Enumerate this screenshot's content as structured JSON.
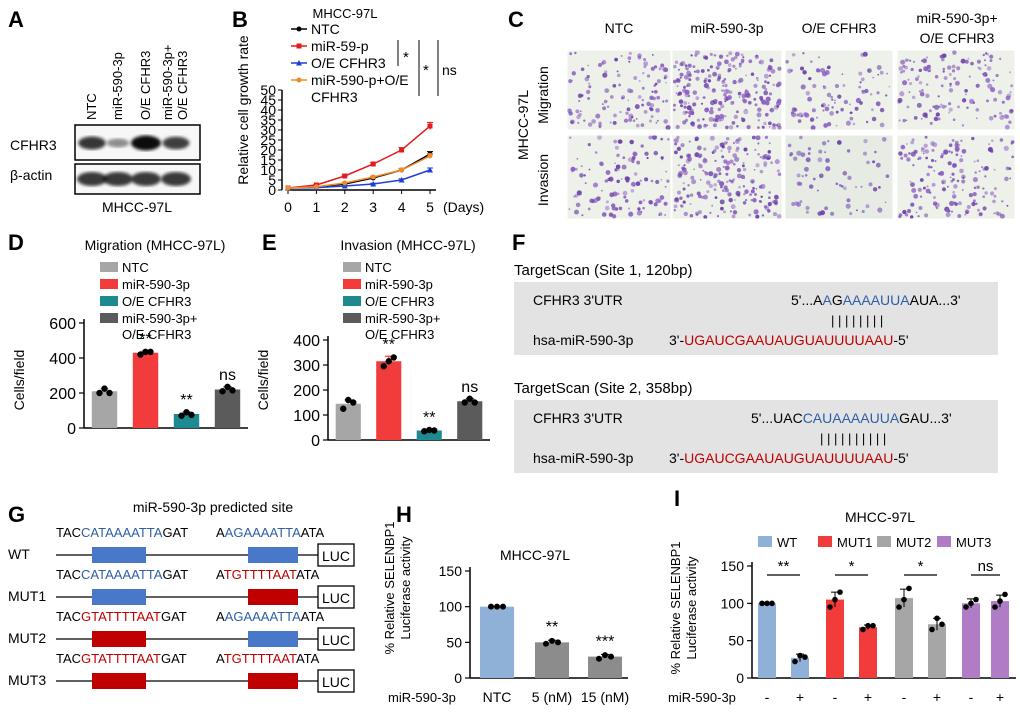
{
  "colors": {
    "ntc": "#a6a6a6",
    "mir": "#f23c3c",
    "oe": "#1d8a8f",
    "combo": "#5b5b5b",
    "line_ntc": "#000000",
    "line_mir": "#e41a1c",
    "line_oe": "#1f3fd6",
    "line_combo": "#f28a26",
    "seq_red": "#c00000",
    "seq_blue": "#2e5ea8",
    "site_blue": "#4a78c8",
    "site_red": "#c00000",
    "lucH_bar": "#8fb1d8",
    "lucH_dark": "#8c8c8c",
    "lucI_wt": "#8fb1d8",
    "lucI_mut1": "#f23c3c",
    "lucI_mut2": "#a6a6a6",
    "lucI_mut3": "#b07cc6",
    "box_gray": "#e3e3e3"
  },
  "panels": {
    "A": {
      "label": "A",
      "lanes": [
        "NTC",
        "miR-590-3p",
        "O/E CFHR3",
        "miR-590-3p+ O/E CFHR3"
      ],
      "bands": [
        "CFHR3",
        "β-actin"
      ],
      "cell_line": "MHCC-97L",
      "cfhr3_intensity": [
        0.75,
        0.25,
        1.0,
        0.7
      ],
      "actin_intensity": [
        0.9,
        0.9,
        0.9,
        0.9
      ]
    },
    "B": {
      "label": "B",
      "title": "MHCC-97L",
      "ylabel": "Relative cell growth rate",
      "xlabel_suffix": "(Days)",
      "sig": [
        "*",
        "*",
        "ns"
      ]
    },
    "C": {
      "label": "C",
      "columns": [
        "NTC",
        "miR-590-3p",
        "O/E CFHR3",
        "miR-590-3p+ O/E CFHR3"
      ],
      "rows": [
        "Migration",
        "Invasion"
      ],
      "cell_line": "MHCC-97L",
      "density": [
        [
          0.35,
          0.9,
          0.25,
          0.45
        ],
        [
          0.35,
          0.75,
          0.12,
          0.55
        ]
      ]
    },
    "D": {
      "label": "D",
      "title": "Migration (MHCC-97L)",
      "ylabel": "Cells/field",
      "sig": [
        "",
        "**",
        "**",
        "ns"
      ]
    },
    "E": {
      "label": "E",
      "title": "Invasion (MHCC-97L)",
      "ylabel": "Cells/field",
      "sig": [
        "",
        "**",
        "**",
        "ns"
      ]
    },
    "F": {
      "label": "F",
      "sites": [
        {
          "title": "TargetScan (Site 1, 120bp)",
          "utr_name": "CFHR3 3'UTR",
          "utr_seq": [
            "5'...A",
            "A",
            "G",
            "AAAAUUA",
            "AUA...3'"
          ],
          "mir_name": "hsa-miR-590-3p",
          "mir_seq": "3'-UGAUCGAAUAUGUAUUUUAAU-5'",
          "pairs": "| | | | | | | |"
        },
        {
          "title": "TargetScan (Site 2, 358bp)",
          "utr_name": "CFHR3 3'UTR",
          "utr_seq": [
            "5'...UAC",
            "CAUAAAAUUA",
            "GAU...3'"
          ],
          "mir_name": "hsa-miR-590-3p",
          "mir_seq": "3'-UGAUCGAAUAUGUAUUUUAAU-5'",
          "pairs": "| | | | | | | | | |"
        }
      ]
    },
    "G": {
      "label": "G",
      "title": "miR-590-3p predicted site",
      "constructs": [
        {
          "name": "WT",
          "seq1": [
            "TAC",
            "CATAAAATTA",
            "GAT"
          ],
          "seq2": [
            "A",
            "AG",
            "AAAATTA",
            "ATA"
          ],
          "box1": "blue",
          "box2": "blue"
        },
        {
          "name": "MUT1",
          "seq1": [
            "TAC",
            "CATAAAATTA",
            "GAT"
          ],
          "seq2": [
            "A",
            "TG",
            "TTTTAAT",
            "ATA"
          ],
          "box1": "blue",
          "box2": "red"
        },
        {
          "name": "MUT2",
          "seq1": [
            "TAC",
            "GTATTTTAAT",
            "GAT"
          ],
          "seq2": [
            "A",
            "AG",
            "AAAATTA",
            "ATA"
          ],
          "box1": "red",
          "box2": "blue"
        },
        {
          "name": "MUT3",
          "seq1": [
            "TAC",
            "GTATTTTAAT",
            "GAT"
          ],
          "seq2": [
            "A",
            "TG",
            "TTTTAAT",
            "ATA"
          ],
          "box1": "red",
          "box2": "red"
        }
      ],
      "luc": "LUC"
    },
    "H": {
      "label": "H",
      "title": "MHCC-97L",
      "ylabel1": "% Relative SELENBP1",
      "ylabel2": "Luciferase activity",
      "xrow_label": "miR-590-3p",
      "sig": [
        "",
        "**",
        "***"
      ]
    },
    "I": {
      "label": "I",
      "title": "MHCC-97L",
      "ylabel1": "% Relative SELENBP1",
      "ylabel2": "Luciferase activity",
      "xrow_label": "miR-590-3p",
      "legend": [
        "WT",
        "MUT1",
        "MUT2",
        "MUT3"
      ],
      "sig": [
        "**",
        "*",
        "*",
        "ns"
      ],
      "treat": [
        "-",
        "+",
        "-",
        "+",
        "-",
        "+",
        "-",
        "+"
      ]
    }
  },
  "chart_data": [
    {
      "id": "B",
      "type": "line",
      "title": "MHCC-97L",
      "xlabel": "(Days)",
      "ylabel": "Relative cell growth rate",
      "x": [
        0,
        1,
        2,
        3,
        4,
        5
      ],
      "xlim": [
        0,
        5
      ],
      "ylim": [
        0,
        50
      ],
      "yticks": [
        0,
        5,
        10,
        15,
        20,
        25,
        30,
        35,
        40,
        45,
        50
      ],
      "series": [
        {
          "name": "NTC",
          "values": [
            1,
            1.5,
            3,
            6,
            10,
            18
          ],
          "err": [
            0,
            0.2,
            0.3,
            0.5,
            0.8,
            1.2
          ]
        },
        {
          "name": "miR-59-p",
          "values": [
            1,
            2.5,
            7,
            13,
            20,
            32
          ],
          "err": [
            0,
            0.3,
            0.5,
            0.8,
            1.2,
            1.8
          ]
        },
        {
          "name": "O/E CFHR3",
          "values": [
            1,
            1.2,
            2,
            3,
            5,
            10
          ],
          "err": [
            0,
            0.2,
            0.3,
            0.4,
            0.6,
            1.0
          ]
        },
        {
          "name": "miR-590-p+O/E CFHR3",
          "values": [
            1,
            1.6,
            3.5,
            6.5,
            10,
            17
          ],
          "err": [
            0,
            0.2,
            0.3,
            0.5,
            0.8,
            1.2
          ]
        }
      ]
    },
    {
      "id": "D",
      "type": "bar",
      "title": "Migration (MHCC-97L)",
      "ylabel": "Cells/field",
      "categories": [
        "NTC",
        "miR-590-3p",
        "O/E CFHR3",
        "miR-590-3p+ O/E CFHR3"
      ],
      "values": [
        210,
        430,
        80,
        220
      ],
      "err": [
        15,
        10,
        12,
        15
      ],
      "points": [
        [
          200,
          225,
          200
        ],
        [
          420,
          435,
          435
        ],
        [
          70,
          90,
          75
        ],
        [
          210,
          235,
          215
        ]
      ],
      "ylim": [
        0,
        600
      ],
      "yticks": [
        0,
        200,
        400,
        600
      ]
    },
    {
      "id": "E",
      "type": "bar",
      "title": "Invasion (MHCC-97L)",
      "ylabel": "Cells/field",
      "categories": [
        "NTC",
        "miR-590-3p",
        "O/E CFHR3",
        "miR-590-3p+ O/E CFHR3"
      ],
      "values": [
        145,
        315,
        38,
        155
      ],
      "err": [
        15,
        20,
        4,
        10
      ],
      "points": [
        [
          125,
          160,
          150
        ],
        [
          295,
          315,
          330
        ],
        [
          35,
          40,
          38
        ],
        [
          150,
          165,
          150
        ]
      ],
      "ylim": [
        0,
        400
      ],
      "yticks": [
        0,
        100,
        200,
        300,
        400
      ]
    },
    {
      "id": "H",
      "type": "bar",
      "title": "MHCC-97L",
      "ylabel": "% Relative SELENBP1 Luciferase activity",
      "xlabel": "miR-590-3p",
      "categories": [
        "NTC",
        "5 (nM)",
        "15 (nM)"
      ],
      "values": [
        100,
        50,
        30
      ],
      "err": [
        0,
        3,
        3
      ],
      "points": [
        [
          100,
          100,
          100
        ],
        [
          48,
          52,
          50
        ],
        [
          27,
          32,
          30
        ]
      ],
      "ylim": [
        0,
        150
      ],
      "yticks": [
        0,
        50,
        100,
        150
      ]
    },
    {
      "id": "I",
      "type": "bar",
      "title": "MHCC-97L",
      "ylabel": "% Relative SELENBP1 Luciferase activity",
      "xlabel": "miR-590-3p",
      "categories": [
        "-",
        "+",
        "-",
        "+",
        "-",
        "+",
        "-",
        "+"
      ],
      "groups": [
        "WT",
        "WT",
        "MUT1",
        "MUT1",
        "MUT2",
        "MUT2",
        "MUT3",
        "MUT3"
      ],
      "values": [
        100,
        27,
        105,
        68,
        107,
        72,
        100,
        103
      ],
      "err": [
        0,
        5,
        10,
        3,
        12,
        8,
        6,
        8
      ],
      "points": [
        [
          100,
          100,
          100
        ],
        [
          22,
          30,
          28
        ],
        [
          95,
          105,
          115
        ],
        [
          65,
          70,
          70
        ],
        [
          95,
          105,
          120
        ],
        [
          65,
          80,
          72
        ],
        [
          95,
          100,
          105
        ],
        [
          95,
          103,
          112
        ]
      ],
      "ylim": [
        0,
        150
      ],
      "yticks": [
        0,
        50,
        100,
        150
      ]
    }
  ]
}
